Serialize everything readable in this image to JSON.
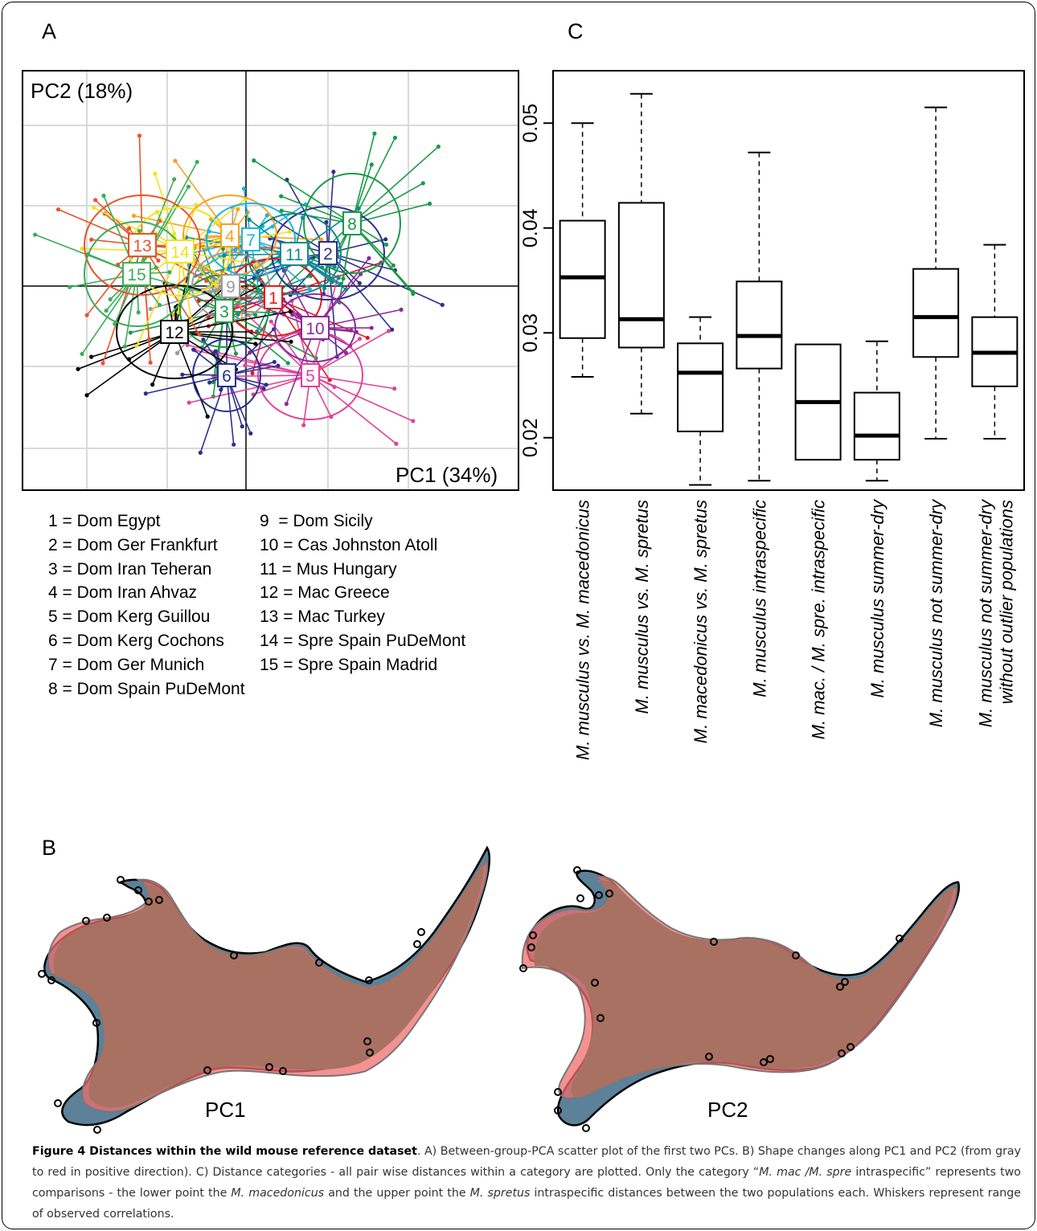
{
  "panels": {
    "a": "A",
    "b": "B",
    "c": "C"
  },
  "scatter": {
    "y_axis_label": "PC2 (18%)",
    "x_axis_label": "PC1 (34%)",
    "groups": [
      {
        "id": "1",
        "color": "#e31a1c"
      },
      {
        "id": "2",
        "color": "#2b2f8f"
      },
      {
        "id": "3",
        "color": "#1a9a46"
      },
      {
        "id": "4",
        "color": "#f7a21b"
      },
      {
        "id": "5",
        "color": "#e0429a"
      },
      {
        "id": "6",
        "color": "#2b2f8f"
      },
      {
        "id": "7",
        "color": "#1ab4e6"
      },
      {
        "id": "8",
        "color": "#1a9a46"
      },
      {
        "id": "9",
        "color": "#9b9b9b"
      },
      {
        "id": "10",
        "color": "#8c2a9a"
      },
      {
        "id": "11",
        "color": "#0f8c8c"
      },
      {
        "id": "12",
        "color": "#000000"
      },
      {
        "id": "13",
        "color": "#e8542b"
      },
      {
        "id": "14",
        "color": "#f2e21b"
      },
      {
        "id": "15",
        "color": "#3aae5a"
      }
    ]
  },
  "legend": {
    "left": [
      "1 = Dom Egypt",
      "2 = Dom Ger Frankfurt",
      "3 = Dom Iran Teheran",
      "4 = Dom Iran Ahvaz",
      "5 = Dom Kerg Guillou",
      "6 = Dom Kerg Cochons",
      "7 = Dom Ger Munich",
      "8 = Dom Spain PuDeMont"
    ],
    "right": [
      "9  = Dom Sicily",
      "10 = Cas Johnston Atoll",
      "11 = Mus Hungary",
      "12 = Mac Greece",
      "13 = Mac Turkey",
      "14 = Spre Spain PuDeMont",
      "15 = Spre Spain Madrid"
    ]
  },
  "chart_data": {
    "type": "boxplot",
    "ylim": [
      0.015,
      0.055
    ],
    "y_ticks": [
      "0.02",
      "0.03",
      "0.04",
      "0.05"
    ],
    "categories": [
      {
        "line1": "M. musculus vs.  M. macedonicus",
        "line2": "",
        "min": 0.0258,
        "q1": 0.0295,
        "median": 0.0353,
        "q3": 0.0407,
        "max": 0.05,
        "whiskers": true
      },
      {
        "line1": "M. musculus vs. M. spretus",
        "line2": "",
        "min": 0.0223,
        "q1": 0.0286,
        "median": 0.0313,
        "q3": 0.0424,
        "max": 0.0528,
        "whiskers": true
      },
      {
        "line1": "M. macedonicus vs. M. spretus",
        "line2": "",
        "min": 0.0155,
        "q1": 0.0206,
        "median": 0.0262,
        "q3": 0.029,
        "max": 0.0315,
        "whiskers": true
      },
      {
        "line1": "M. musculus intraspecific",
        "line2": "",
        "min": 0.0159,
        "q1": 0.0266,
        "median": 0.0297,
        "q3": 0.0349,
        "max": 0.0472,
        "whiskers": true
      },
      {
        "line1": "M. mac. / M. spre. intraspecific",
        "line2": "",
        "min": 0.0179,
        "q1": 0.0179,
        "median": 0.0234,
        "q3": 0.0289,
        "max": 0.0289,
        "whiskers": false
      },
      {
        "line1": "M. musculus summer-dry",
        "line2": "",
        "min": 0.0159,
        "q1": 0.0179,
        "median": 0.0202,
        "q3": 0.0243,
        "max": 0.0292,
        "whiskers": true
      },
      {
        "line1": "M. musculus not summer-dry",
        "line2": "",
        "min": 0.0199,
        "q1": 0.0277,
        "median": 0.0315,
        "q3": 0.0361,
        "max": 0.0515,
        "whiskers": true
      },
      {
        "line1": "M. musculus not summer-dry",
        "line2": "without outlier populations",
        "min": 0.0199,
        "q1": 0.0249,
        "median": 0.0281,
        "q3": 0.0315,
        "max": 0.0384,
        "whiskers": true
      }
    ]
  },
  "shapes": {
    "left_label": "PC1",
    "right_label": "PC2"
  },
  "caption": {
    "title": "Figure 4 Distances within the wild mouse reference dataset",
    "part1": ". A) Between-group-PCA scatter plot of the first two PCs. B) Shape changes along PC1 and PC2 (from gray to red in positive direction). C) Distance categories - all pair wise distances within a category are plotted. Only the category “",
    "italic1": "M. mac /M. spre",
    "part2": " intraspecific” represents two comparisons - the lower point the ",
    "italic2": "M. macedonicus",
    "part3": " and the upper point the ",
    "italic3": "M. spretus",
    "part4": " intraspecific distances between the two populations each. Whiskers represent range of observed correlations."
  }
}
